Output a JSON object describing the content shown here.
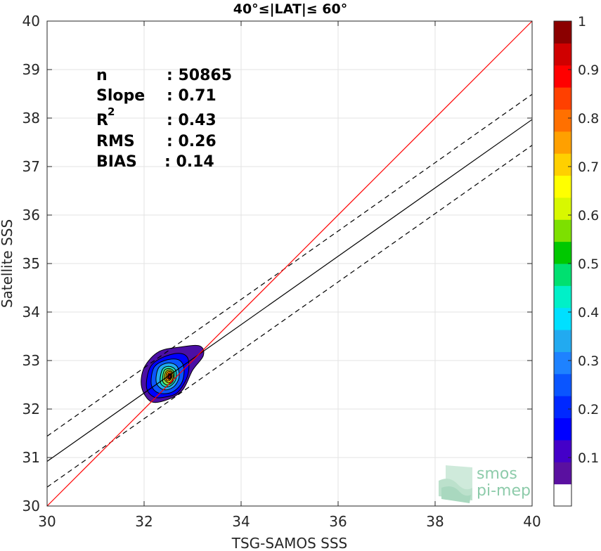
{
  "chart_data": {
    "type": "scatter",
    "title": "40°≤|LAT|≤ 60°",
    "xlabel": "TSG-SAMOS SSS",
    "ylabel": "Satellite SSS",
    "xlim": [
      30,
      40
    ],
    "ylim": [
      30,
      40
    ],
    "xticks": [
      "30",
      "32",
      "34",
      "36",
      "38",
      "40"
    ],
    "yticks": [
      "30",
      "31",
      "32",
      "33",
      "34",
      "35",
      "36",
      "37",
      "38",
      "39",
      "40"
    ],
    "grid": true,
    "stats": {
      "n_label": "n",
      "n_value": ": 50865",
      "slope_label": "Slope",
      "slope_value": ": 0.71",
      "r2_label": "R",
      "r2_sup": "2",
      "r2_value": ": 0.43",
      "rms_label": "RMS",
      "rms_value": ": 0.26",
      "bias_label": "BIAS",
      "bias_value": ": 0.14"
    },
    "one_to_one_line": {
      "x": [
        30,
        40
      ],
      "y": [
        30,
        40
      ],
      "color": "#ff0000"
    },
    "regression_line": {
      "x": [
        30,
        40
      ],
      "y": [
        30.92,
        37.97
      ],
      "color": "#000000"
    },
    "upper_bound_line": {
      "x": [
        30,
        40
      ],
      "y": [
        31.44,
        38.49
      ],
      "style": "dashed"
    },
    "lower_bound_line": {
      "x": [
        30,
        40
      ],
      "y": [
        30.39,
        37.44
      ],
      "style": "dashed"
    },
    "density_center": {
      "x": 32.52,
      "y": 32.65
    },
    "density_contours": [
      {
        "level": 0.05,
        "color": "#4b0fa5",
        "points": [
          [
            31.95,
            32.45
          ],
          [
            32.0,
            32.85
          ],
          [
            32.3,
            33.18
          ],
          [
            32.75,
            33.28
          ],
          [
            33.15,
            33.3
          ],
          [
            33.22,
            33.1
          ],
          [
            33.0,
            32.8
          ],
          [
            32.8,
            32.4
          ],
          [
            32.5,
            32.2
          ],
          [
            32.15,
            32.15
          ]
        ]
      },
      {
        "level": 0.15,
        "color": "#0000ff",
        "points": [
          [
            32.05,
            32.45
          ],
          [
            32.12,
            32.85
          ],
          [
            32.35,
            33.05
          ],
          [
            32.7,
            33.15
          ],
          [
            32.9,
            33.05
          ],
          [
            32.9,
            32.7
          ],
          [
            32.7,
            32.35
          ],
          [
            32.45,
            32.25
          ],
          [
            32.2,
            32.25
          ]
        ]
      },
      {
        "level": 0.25,
        "color": "#0a55ff",
        "points": [
          [
            32.15,
            32.5
          ],
          [
            32.2,
            32.85
          ],
          [
            32.42,
            33.0
          ],
          [
            32.7,
            33.02
          ],
          [
            32.82,
            32.85
          ],
          [
            32.78,
            32.55
          ],
          [
            32.58,
            32.35
          ],
          [
            32.3,
            32.33
          ]
        ]
      },
      {
        "level": 0.35,
        "color": "#22aaf0",
        "points": [
          [
            32.25,
            32.55
          ],
          [
            32.3,
            32.85
          ],
          [
            32.5,
            32.95
          ],
          [
            32.68,
            32.88
          ],
          [
            32.72,
            32.65
          ],
          [
            32.6,
            32.45
          ],
          [
            32.4,
            32.4
          ]
        ]
      },
      {
        "level": 0.45,
        "color": "#22e0b0",
        "points": [
          [
            32.33,
            32.58
          ],
          [
            32.38,
            32.82
          ],
          [
            32.52,
            32.88
          ],
          [
            32.65,
            32.8
          ],
          [
            32.65,
            32.6
          ],
          [
            32.53,
            32.47
          ],
          [
            32.4,
            32.47
          ]
        ]
      },
      {
        "level": 0.55,
        "color": "#7de050",
        "points": [
          [
            32.38,
            32.6
          ],
          [
            32.42,
            32.8
          ],
          [
            32.54,
            32.83
          ],
          [
            32.62,
            32.75
          ],
          [
            32.6,
            32.58
          ],
          [
            32.5,
            32.5
          ],
          [
            32.42,
            32.52
          ]
        ]
      },
      {
        "level": 0.65,
        "color": "#ffe000",
        "points": [
          [
            32.42,
            32.62
          ],
          [
            32.45,
            32.77
          ],
          [
            32.54,
            32.8
          ],
          [
            32.6,
            32.72
          ],
          [
            32.58,
            32.6
          ],
          [
            32.5,
            32.54
          ]
        ]
      },
      {
        "level": 0.75,
        "color": "#ff9000",
        "points": [
          [
            32.45,
            32.63
          ],
          [
            32.47,
            32.75
          ],
          [
            32.55,
            32.77
          ],
          [
            32.58,
            32.68
          ],
          [
            32.54,
            32.6
          ],
          [
            32.48,
            32.58
          ]
        ]
      },
      {
        "level": 0.85,
        "color": "#ff3010",
        "points": [
          [
            32.48,
            32.64
          ],
          [
            32.5,
            32.73
          ],
          [
            32.55,
            32.73
          ],
          [
            32.56,
            32.66
          ],
          [
            32.52,
            32.61
          ]
        ]
      },
      {
        "level": 0.95,
        "color": "#8b0000",
        "points": [
          [
            32.5,
            32.65
          ],
          [
            32.51,
            32.71
          ],
          [
            32.54,
            32.71
          ],
          [
            32.55,
            32.66
          ],
          [
            32.52,
            32.63
          ]
        ]
      }
    ],
    "colorbar": {
      "range": [
        0,
        1
      ],
      "tick_labels": [
        "0.1",
        "0.2",
        "0.3",
        "0.4",
        "0.5",
        "0.6",
        "0.7",
        "0.8",
        "0.9",
        "1"
      ],
      "tick_values": [
        0.1,
        0.2,
        0.3,
        0.4,
        0.5,
        0.6,
        0.7,
        0.8,
        0.9,
        1.0
      ],
      "colors": [
        "#ffffff",
        "#5a10a0",
        "#4400c8",
        "#0000ff",
        "#0028ff",
        "#0a55ff",
        "#1e82ff",
        "#22aaf0",
        "#00e0ff",
        "#00f0c8",
        "#00e070",
        "#00c800",
        "#7de000",
        "#d8f800",
        "#ffff00",
        "#ffd000",
        "#ffa000",
        "#ff7000",
        "#ff4000",
        "#ff0000",
        "#d00000",
        "#8b0000"
      ]
    },
    "logo": {
      "line1": "smos",
      "line2": "pi-mep"
    }
  }
}
